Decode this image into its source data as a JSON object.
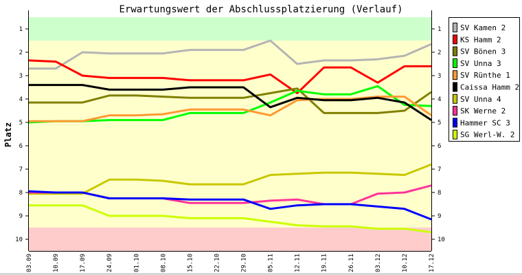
{
  "chart_data": {
    "type": "line",
    "title": "Erwartungswert der Abschlussplatzierung (Verlauf)",
    "ylabel": "Platz",
    "xlabel": "",
    "ylim": [
      0.5,
      10.5
    ],
    "y_inverted": true,
    "yticks": [
      "1",
      "2",
      "3",
      "4",
      "5",
      "6",
      "7",
      "8",
      "9",
      "10"
    ],
    "categories": [
      "03.09",
      "10.09",
      "17.09",
      "24.09",
      "01.10",
      "08.10",
      "15.10",
      "22.10",
      "29.10",
      "05.11",
      "12.11",
      "19.11",
      "26.11",
      "03.12",
      "10.12",
      "17.12"
    ],
    "bands": [
      {
        "from": 0.5,
        "to": 1.5,
        "color": "#ccffcc"
      },
      {
        "from": 1.5,
        "to": 9.5,
        "color": "#ffffcc"
      },
      {
        "from": 9.5,
        "to": 10.5,
        "color": "#ffcccc"
      }
    ],
    "legend_position": "right",
    "series": [
      {
        "name": "SV Kamen 2",
        "color": "#b4b4b4",
        "values": [
          2.7,
          2.7,
          2.0,
          2.05,
          2.05,
          2.05,
          1.9,
          1.9,
          1.9,
          1.5,
          2.5,
          2.35,
          2.35,
          2.3,
          2.15,
          1.65
        ]
      },
      {
        "name": "KS Hamm 2",
        "color": "#ff0000",
        "values": [
          2.35,
          2.4,
          3.0,
          3.1,
          3.1,
          3.1,
          3.2,
          3.2,
          3.2,
          2.95,
          3.75,
          2.65,
          2.65,
          3.3,
          2.6,
          2.6
        ]
      },
      {
        "name": "SV Bönen 3",
        "color": "#808000",
        "values": [
          4.15,
          4.15,
          4.15,
          3.85,
          3.85,
          3.9,
          3.95,
          3.95,
          3.95,
          3.75,
          3.55,
          4.6,
          4.6,
          4.6,
          4.5,
          3.7
        ]
      },
      {
        "name": "SV Unna 3",
        "color": "#00ff00",
        "values": [
          5.0,
          4.95,
          4.95,
          4.9,
          4.9,
          4.9,
          4.6,
          4.6,
          4.6,
          4.15,
          3.65,
          3.8,
          3.8,
          3.45,
          4.25,
          4.3
        ]
      },
      {
        "name": "SV Rünthe 1",
        "color": "#ff9933",
        "values": [
          4.95,
          4.95,
          4.95,
          4.7,
          4.7,
          4.65,
          4.45,
          4.45,
          4.45,
          4.7,
          4.05,
          4.0,
          4.0,
          3.9,
          3.9,
          4.7
        ]
      },
      {
        "name": "Caissa Hamm 2",
        "color": "#000000",
        "values": [
          3.4,
          3.4,
          3.4,
          3.6,
          3.6,
          3.6,
          3.5,
          3.5,
          3.5,
          4.35,
          3.95,
          4.05,
          4.05,
          3.95,
          4.15,
          4.9
        ]
      },
      {
        "name": "SV Unna 4",
        "color": "#c8c800",
        "values": [
          8.05,
          8.05,
          8.05,
          7.45,
          7.45,
          7.5,
          7.65,
          7.65,
          7.65,
          7.25,
          7.2,
          7.15,
          7.15,
          7.2,
          7.25,
          6.8
        ]
      },
      {
        "name": "SK Werne 2",
        "color": "#ff3399",
        "values": [
          8.0,
          8.0,
          8.0,
          8.25,
          8.25,
          8.25,
          8.45,
          8.45,
          8.45,
          8.35,
          8.3,
          8.5,
          8.5,
          8.05,
          8.0,
          7.7
        ]
      },
      {
        "name": "Hammer SC 3",
        "color": "#0000ff",
        "values": [
          7.95,
          8.0,
          8.0,
          8.25,
          8.25,
          8.25,
          8.3,
          8.3,
          8.3,
          8.7,
          8.55,
          8.5,
          8.5,
          8.6,
          8.7,
          9.15
        ]
      },
      {
        "name": "SG Werl-W. 2",
        "color": "#ccff00",
        "values": [
          8.55,
          8.55,
          8.55,
          9.0,
          9.0,
          9.0,
          9.1,
          9.1,
          9.1,
          9.25,
          9.4,
          9.45,
          9.45,
          9.55,
          9.55,
          9.7
        ]
      }
    ]
  }
}
